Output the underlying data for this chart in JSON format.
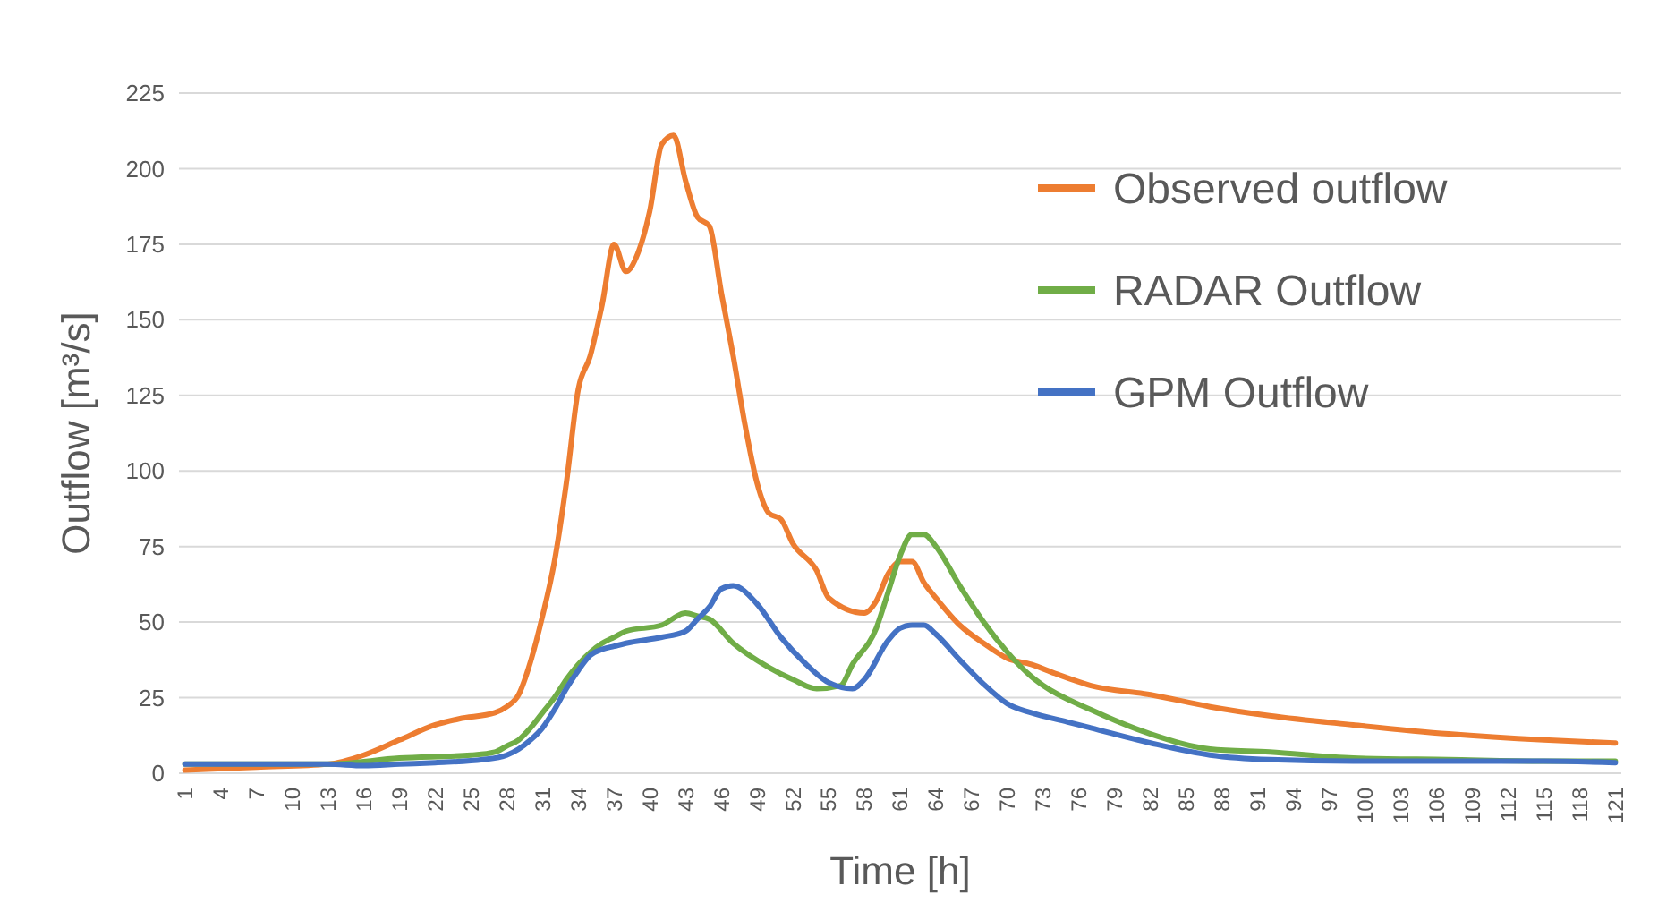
{
  "chart_data": {
    "type": "line",
    "xlabel": "Time [h]",
    "ylabel": "Outflow [m³/s]",
    "xlim": [
      0.5,
      121.5
    ],
    "xticks": [
      1,
      4,
      7,
      10,
      13,
      16,
      19,
      22,
      25,
      28,
      31,
      34,
      37,
      40,
      43,
      46,
      49,
      52,
      55,
      58,
      61,
      64,
      67,
      70,
      73,
      76,
      79,
      82,
      85,
      88,
      91,
      94,
      97,
      100,
      103,
      106,
      109,
      112,
      115,
      118,
      121
    ],
    "ylim": [
      0,
      225
    ],
    "yticks": [
      0,
      25,
      50,
      75,
      100,
      125,
      150,
      175,
      200,
      225
    ],
    "grid": "y",
    "legend": "top right",
    "series": [
      {
        "name": "Observed outflow",
        "color": "#ed7d31",
        "x": [
          1,
          7,
          13,
          16,
          19,
          22,
          24,
          27,
          28,
          29,
          30,
          31,
          32,
          33,
          34,
          35,
          36,
          37,
          38,
          39,
          40,
          41,
          42,
          43,
          44,
          45,
          46,
          47,
          48,
          49,
          50,
          51,
          52,
          54,
          55,
          58,
          59,
          60,
          61,
          62,
          63,
          64,
          66,
          68,
          70,
          72,
          74,
          77,
          82,
          87,
          92,
          99,
          107,
          115,
          121
        ],
        "values": [
          1,
          2,
          3,
          6,
          11,
          16,
          18,
          20,
          22,
          26,
          37,
          52,
          70,
          96,
          127,
          138,
          155,
          175,
          166,
          172,
          186,
          208,
          211,
          196,
          184,
          181,
          159,
          138,
          115,
          96,
          86,
          84,
          76,
          67,
          58,
          53,
          57,
          66,
          70,
          70,
          63,
          58,
          49,
          43,
          38,
          36,
          33,
          29,
          26,
          22,
          19,
          16,
          13,
          11,
          10
        ]
      },
      {
        "name": "RADAR Outflow",
        "color": "#70ad47",
        "x": [
          1,
          7,
          13,
          19,
          25,
          27,
          28,
          29,
          30,
          31,
          32,
          33,
          34,
          35,
          36,
          37,
          38,
          41,
          43,
          44,
          45,
          47,
          50,
          52,
          54,
          56,
          57,
          59,
          60,
          61,
          62,
          63,
          64,
          66,
          68,
          70,
          72,
          73,
          77,
          82,
          87,
          92,
          99,
          107,
          115,
          121
        ],
        "values": [
          3,
          3,
          3,
          5,
          6,
          7,
          9,
          11,
          15,
          20,
          25,
          31,
          36,
          40,
          43,
          45,
          47,
          49,
          53,
          52,
          51,
          43,
          35,
          31,
          28,
          29,
          36,
          48,
          60,
          72,
          79,
          79,
          75,
          62,
          50,
          40,
          32,
          29,
          21,
          13,
          8,
          7,
          5,
          4.5,
          4,
          4
        ]
      },
      {
        "name": "GPM Outflow",
        "color": "#4472c4",
        "x": [
          1,
          7,
          13,
          16,
          19,
          22,
          26,
          28,
          29,
          30,
          31,
          32,
          33,
          34,
          35,
          36,
          37,
          38,
          41,
          43,
          44,
          45,
          46,
          47,
          49,
          51,
          53,
          55,
          57,
          58,
          60,
          61,
          62,
          63,
          64,
          66,
          68,
          70,
          72,
          75,
          77,
          82,
          87,
          92,
          99,
          107,
          115,
          121
        ],
        "values": [
          3,
          3,
          3,
          2.5,
          3,
          3.5,
          4.5,
          6,
          8,
          11,
          15,
          21,
          28,
          34,
          39,
          41,
          42,
          43,
          45,
          47,
          51,
          55,
          61,
          62,
          56,
          45,
          36.5,
          30,
          28,
          31,
          44,
          48,
          49,
          49,
          46,
          37.5,
          29.5,
          23,
          20,
          17,
          15,
          10,
          6,
          4.5,
          4,
          4,
          4,
          3.5
        ]
      }
    ]
  }
}
